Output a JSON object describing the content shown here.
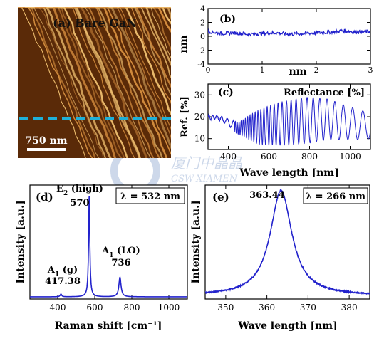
{
  "colors": {
    "series": "#2222cc",
    "afm_dark": "#5a2a08",
    "afm_light": "#f0c070",
    "dash": "#1fb0d8",
    "watermark": "#c8d4e8"
  },
  "watermark": {
    "line1": "厦门中晶晶",
    "line2": "CSW-XIAMEN"
  },
  "chart_data": [
    {
      "id": "a",
      "type": "image",
      "title": "(a) Bare GaN",
      "scale_bar_label": "750 nm",
      "description_elements": [
        "AFM height image",
        "dashed line profile"
      ]
    },
    {
      "id": "b",
      "type": "line",
      "title": "(b)",
      "xlabel": "nm",
      "ylabel": "nm",
      "xlim": [
        0,
        3
      ],
      "ylim": [
        -4,
        4
      ],
      "xticks": [
        0,
        1,
        2,
        3
      ],
      "yticks": [
        -4,
        -2,
        0,
        2,
        4
      ],
      "series": [
        {
          "x": [
            0.0,
            0.25,
            0.5,
            0.75,
            1.0,
            1.25,
            1.5,
            1.75,
            2.0,
            2.25,
            2.5,
            2.75,
            3.0
          ],
          "y": [
            0.7,
            0.4,
            0.5,
            0.3,
            0.4,
            0.5,
            0.3,
            0.4,
            0.5,
            0.6,
            0.8,
            0.6,
            0.7
          ]
        }
      ]
    },
    {
      "id": "c",
      "type": "line",
      "title": "(c)",
      "annotation": "Reflectance [%]",
      "xlabel": "Wave length [nm]",
      "ylabel": "Ref. [%]",
      "xlim": [
        300,
        1100
      ],
      "ylim": [
        5,
        35
      ],
      "xticks": [
        400,
        600,
        800,
        1000
      ],
      "yticks": [
        10,
        20,
        30
      ],
      "envelope": {
        "x": [
          300,
          340,
          370,
          400,
          430,
          450,
          480,
          500,
          550,
          600,
          650,
          700,
          750,
          800,
          850,
          900,
          950,
          1000,
          1050,
          1100
        ],
        "upper": [
          21,
          20.5,
          20,
          19,
          18,
          17.5,
          19,
          20.5,
          23,
          25,
          26.5,
          27.5,
          28.5,
          29,
          28.5,
          28,
          26,
          24.5,
          23,
          22
        ],
        "lower": [
          18.5,
          19,
          17.5,
          16.5,
          13,
          12,
          11,
          9.5,
          7.5,
          7,
          7,
          7,
          7.5,
          8,
          9,
          9.5,
          9.5,
          9.5,
          9.5,
          10
        ]
      },
      "fringe_period_ref_nm": 30,
      "fringe_ref_wavelength_nm": 800
    },
    {
      "id": "d",
      "type": "line",
      "title": "(d)",
      "legend_box": "λ = 532 nm",
      "xlabel": "Raman shift [cm⁻¹]",
      "ylabel": "Intensity [a.u.]",
      "xlim": [
        250,
        1100
      ],
      "ylim": [
        0,
        1.05
      ],
      "xticks": [
        400,
        600,
        800,
        1000
      ],
      "baseline": 0.02,
      "peaks": [
        {
          "center": 417.38,
          "height": 0.025,
          "width": 5,
          "label_line1": "A",
          "label_sub": "1",
          "label_line2": " (g)",
          "value_label": "417.38"
        },
        {
          "center": 570,
          "height": 0.93,
          "width": 4,
          "label_line1": "E",
          "label_sub": "2",
          "label_line2": " (high)",
          "value_label": "570"
        },
        {
          "center": 736,
          "height": 0.18,
          "width": 7,
          "label_line1": "A",
          "label_sub": "1",
          "label_line2": " (LO)",
          "value_label": "736"
        }
      ]
    },
    {
      "id": "e",
      "type": "line",
      "title": "(e)",
      "legend_box": "λ = 266 nm",
      "peak_label": "363.44",
      "xlabel": "Wave length [nm]",
      "ylabel": "Intensity [a.u.]",
      "xlim": [
        345,
        385
      ],
      "ylim": [
        0,
        1.05
      ],
      "xticks": [
        350,
        360,
        370,
        380
      ],
      "peak": {
        "center": 363.44,
        "height": 0.97,
        "width": 3.2
      },
      "baseline": 0.03
    }
  ]
}
